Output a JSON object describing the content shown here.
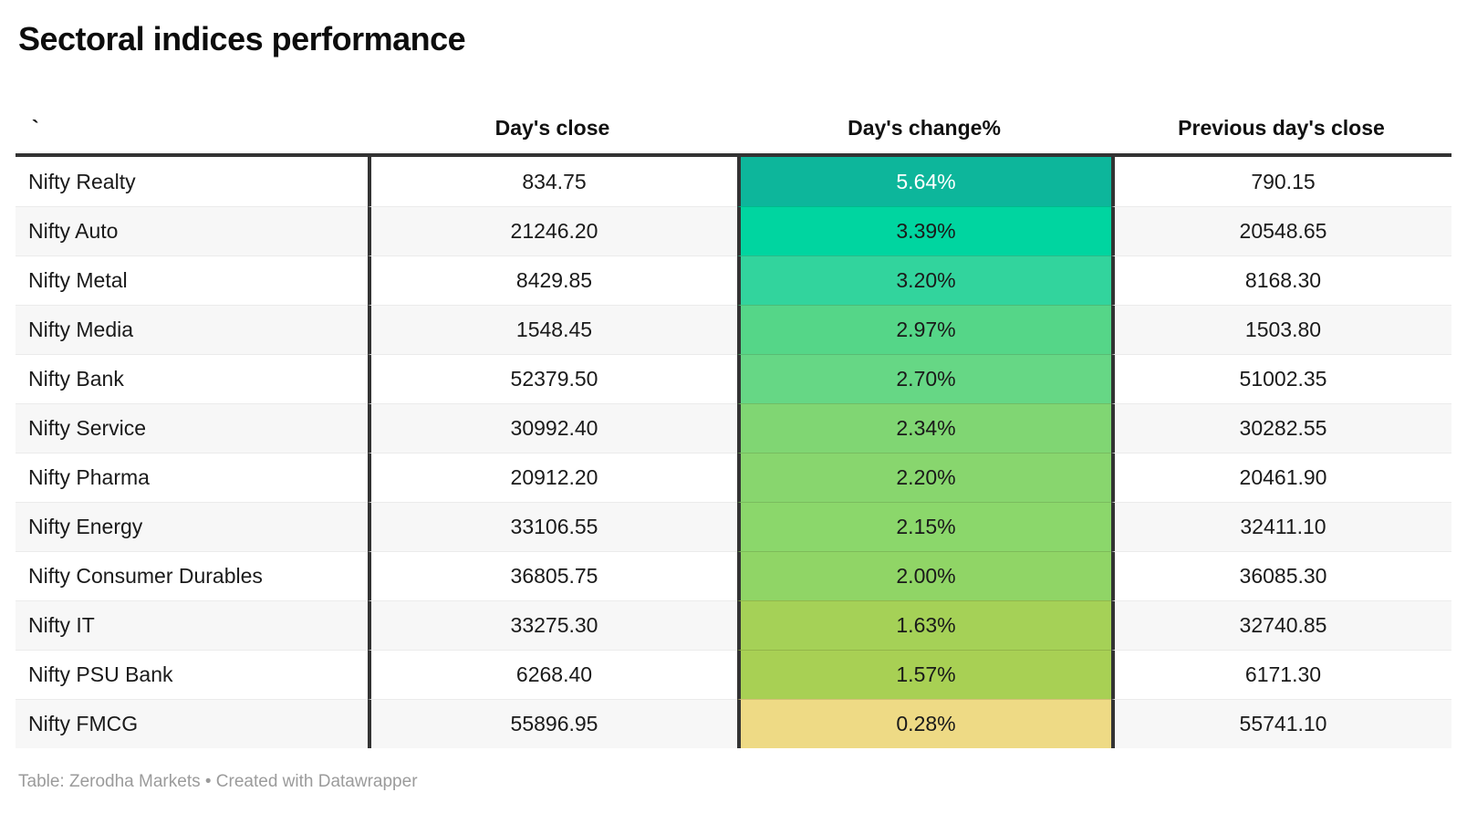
{
  "title": "Sectoral indices performance",
  "header": {
    "col_name": "`",
    "col_close": "Day's close",
    "col_change": "Day's change%",
    "col_prev": "Previous day's close"
  },
  "rows": [
    {
      "name": "Nifty Realty",
      "close": "834.75",
      "change": "5.64%",
      "prev": "790.15",
      "color": "#0db69b",
      "text_color": "#ffffff"
    },
    {
      "name": "Nifty Auto",
      "close": "21246.20",
      "change": "3.39%",
      "prev": "20548.65",
      "color": "#00d5a0",
      "text_color": "#1a1a1a"
    },
    {
      "name": "Nifty Metal",
      "close": "8429.85",
      "change": "3.20%",
      "prev": "8168.30",
      "color": "#32d49d",
      "text_color": "#1a1a1a"
    },
    {
      "name": "Nifty Media",
      "close": "1548.45",
      "change": "2.97%",
      "prev": "1503.80",
      "color": "#55d688",
      "text_color": "#1a1a1a"
    },
    {
      "name": "Nifty Bank",
      "close": "52379.50",
      "change": "2.70%",
      "prev": "51002.35",
      "color": "#66d785",
      "text_color": "#1a1a1a"
    },
    {
      "name": "Nifty Service",
      "close": "30992.40",
      "change": "2.34%",
      "prev": "30282.55",
      "color": "#80d673",
      "text_color": "#1a1a1a"
    },
    {
      "name": "Nifty Pharma",
      "close": "20912.20",
      "change": "2.20%",
      "prev": "20461.90",
      "color": "#88d66e",
      "text_color": "#1a1a1a"
    },
    {
      "name": "Nifty Energy",
      "close": "33106.55",
      "change": "2.15%",
      "prev": "32411.10",
      "color": "#8bd76b",
      "text_color": "#1a1a1a"
    },
    {
      "name": "Nifty Consumer Durables",
      "close": "36805.75",
      "change": "2.00%",
      "prev": "36085.30",
      "color": "#90d566",
      "text_color": "#1a1a1a"
    },
    {
      "name": "Nifty IT",
      "close": "33275.30",
      "change": "1.63%",
      "prev": "32740.85",
      "color": "#a5d157",
      "text_color": "#1a1a1a"
    },
    {
      "name": "Nifty PSU Bank",
      "close": "6268.40",
      "change": "1.57%",
      "prev": "6171.30",
      "color": "#a8d054",
      "text_color": "#1a1a1a"
    },
    {
      "name": "Nifty FMCG",
      "close": "55896.95",
      "change": "0.28%",
      "prev": "55741.10",
      "color": "#eeda85",
      "text_color": "#1a1a1a"
    }
  ],
  "footer": {
    "credit": "Table: Zerodha Markets • Created with Datawrapper"
  },
  "colors": {
    "border": "#333333",
    "stripe": "#f7f7f7",
    "separator": "#ebebeb",
    "footer_text": "#9b9b9b"
  },
  "chart_data": {
    "type": "table",
    "title": "Sectoral indices performance",
    "columns": [
      "`",
      "Day's close",
      "Day's change%",
      "Previous day's close"
    ],
    "rows": [
      [
        "Nifty Realty",
        834.75,
        "5.64%",
        790.15
      ],
      [
        "Nifty Auto",
        21246.2,
        "3.39%",
        20548.65
      ],
      [
        "Nifty Metal",
        8429.85,
        "3.20%",
        8168.3
      ],
      [
        "Nifty Media",
        1548.45,
        "2.97%",
        1503.8
      ],
      [
        "Nifty Bank",
        52379.5,
        "2.70%",
        51002.35
      ],
      [
        "Nifty Service",
        30992.4,
        "2.34%",
        30282.55
      ],
      [
        "Nifty Pharma",
        20912.2,
        "2.20%",
        20461.9
      ],
      [
        "Nifty Energy",
        33106.55,
        "2.15%",
        32411.1
      ],
      [
        "Nifty Consumer Durables",
        36805.75,
        "2.00%",
        36085.3
      ],
      [
        "Nifty IT",
        33275.3,
        "1.63%",
        32740.85
      ],
      [
        "Nifty PSU Bank",
        6268.4,
        "1.57%",
        6171.3
      ],
      [
        "Nifty FMCG",
        55896.95,
        "0.28%",
        55741.1
      ]
    ],
    "heatmap_column": "Day's change%",
    "heatmap_scale": [
      "#0db69b",
      "#eeda85"
    ],
    "footer": "Table: Zerodha Markets • Created with Datawrapper"
  }
}
